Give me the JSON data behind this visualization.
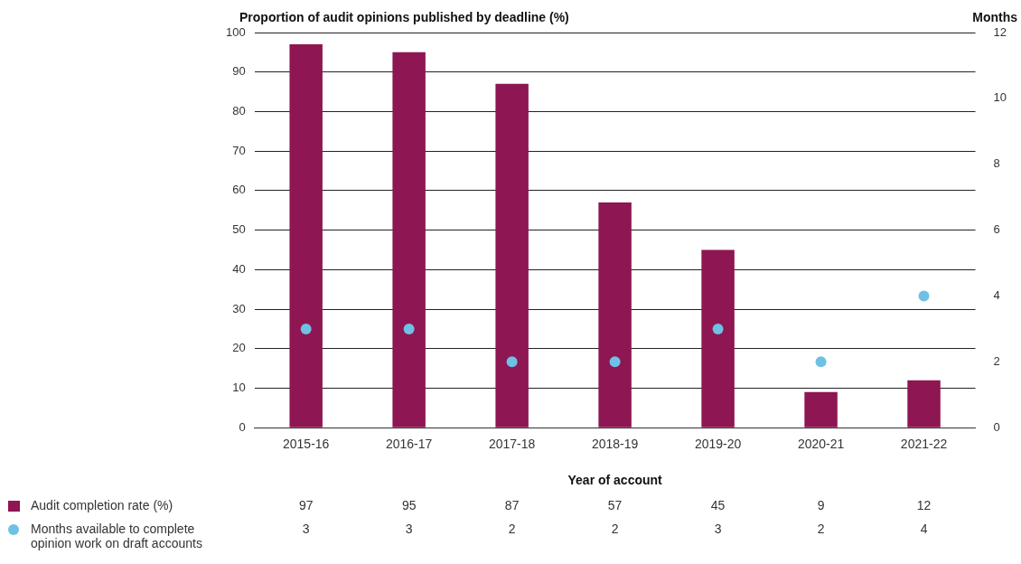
{
  "chart_data": {
    "type": "bar",
    "xlabel": "Year of account",
    "ylabel": "Proportion of audit opinions published by deadline (%)",
    "y2label": "Months",
    "categories": [
      "2015-16",
      "2016-17",
      "2017-18",
      "2018-19",
      "2019-20",
      "2020-21",
      "2021-22"
    ],
    "series": [
      {
        "name": "Audit completion rate (%)",
        "color": "#8e1652",
        "values": [
          97,
          95,
          87,
          57,
          45,
          9,
          12
        ]
      },
      {
        "name": "Months available to complete opinion work on draft accounts",
        "type": "scatter",
        "axis": "y2",
        "color": "#6ec1e4",
        "x": [
          "2015-16",
          "2016-17",
          "2017-18",
          "2018-19",
          "2019-20",
          "2020-21",
          "2021-22"
        ],
        "values": [
          3,
          3,
          2,
          2,
          3,
          2,
          4
        ]
      }
    ],
    "ylim": [
      0,
      100
    ],
    "yticks": [
      0,
      10,
      20,
      30,
      40,
      50,
      60,
      70,
      80,
      90,
      100
    ],
    "y2lim": [
      0,
      12
    ],
    "y2ticks": [
      0,
      2,
      4,
      6,
      8,
      10,
      12
    ],
    "grid": "y",
    "legend": "bottom",
    "marker": "circle",
    "data_labels": true
  }
}
